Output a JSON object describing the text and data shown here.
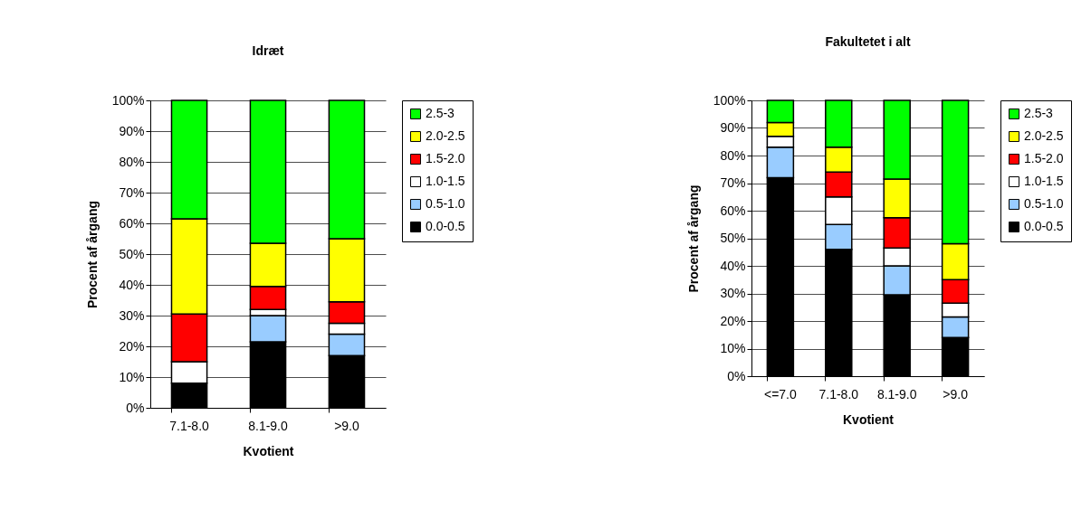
{
  "chart_data": [
    {
      "type": "bar",
      "stacked": true,
      "title": "Idræt",
      "xlabel": "Kvotient",
      "ylabel": "Procent af årgang",
      "categories": [
        "7.1-8.0",
        "8.1-9.0",
        ">9.0"
      ],
      "series": [
        {
          "name": "0.0-0.5",
          "color": "#000000",
          "values": [
            8,
            21.5,
            17
          ]
        },
        {
          "name": "0.5-1.0",
          "color": "#99ccff",
          "values": [
            0,
            8.5,
            7
          ]
        },
        {
          "name": "1.0-1.5",
          "color": "#ffffff",
          "values": [
            7,
            2,
            3.5
          ]
        },
        {
          "name": "1.5-2.0",
          "color": "#ff0000",
          "values": [
            15.5,
            7.5,
            7
          ]
        },
        {
          "name": "2.0-2.5",
          "color": "#ffff00",
          "values": [
            31,
            14,
            20.5
          ]
        },
        {
          "name": "2.5-3",
          "color": "#00ff00",
          "values": [
            38.5,
            46.5,
            45
          ]
        }
      ],
      "ylim": [
        0,
        100
      ],
      "yticks": [
        {
          "value": 0,
          "label": "0%"
        },
        {
          "value": 10,
          "label": "10%"
        },
        {
          "value": 20,
          "label": "20%"
        },
        {
          "value": 30,
          "label": "30%"
        },
        {
          "value": 40,
          "label": "40%"
        },
        {
          "value": 50,
          "label": "50%"
        },
        {
          "value": 60,
          "label": "60%"
        },
        {
          "value": 70,
          "label": "70%"
        },
        {
          "value": 80,
          "label": "80%"
        },
        {
          "value": 90,
          "label": "90%"
        },
        {
          "value": 100,
          "label": "100%"
        }
      ],
      "grid": "y",
      "legend": "right"
    },
    {
      "type": "bar",
      "stacked": true,
      "title": "Fakultetet i alt",
      "xlabel": "Kvotient",
      "ylabel": "Procent af årgang",
      "categories": [
        "<=7.0",
        "7.1-8.0",
        "8.1-9.0",
        ">9.0"
      ],
      "series": [
        {
          "name": "0.0-0.5",
          "color": "#000000",
          "values": [
            72,
            46,
            29.5,
            14
          ]
        },
        {
          "name": "0.5-1.0",
          "color": "#99ccff",
          "values": [
            11,
            9,
            10.5,
            7.5
          ]
        },
        {
          "name": "1.0-1.5",
          "color": "#ffffff",
          "values": [
            4,
            10,
            6.5,
            5
          ]
        },
        {
          "name": "1.5-2.0",
          "color": "#ff0000",
          "values": [
            0,
            9,
            11,
            8.5
          ]
        },
        {
          "name": "2.0-2.5",
          "color": "#ffff00",
          "values": [
            5,
            9,
            14,
            13
          ]
        },
        {
          "name": "2.5-3",
          "color": "#00ff00",
          "values": [
            8,
            17,
            28.5,
            52
          ]
        }
      ],
      "ylim": [
        0,
        100
      ],
      "yticks": [
        {
          "value": 0,
          "label": "0%"
        },
        {
          "value": 10,
          "label": "10%"
        },
        {
          "value": 20,
          "label": "20%"
        },
        {
          "value": 30,
          "label": "30%"
        },
        {
          "value": 40,
          "label": "40%"
        },
        {
          "value": 50,
          "label": "50%"
        },
        {
          "value": 60,
          "label": "60%"
        },
        {
          "value": 70,
          "label": "70%"
        },
        {
          "value": 80,
          "label": "80%"
        },
        {
          "value": 90,
          "label": "90%"
        },
        {
          "value": 100,
          "label": "100%"
        }
      ],
      "grid": "y",
      "legend": "right"
    }
  ]
}
